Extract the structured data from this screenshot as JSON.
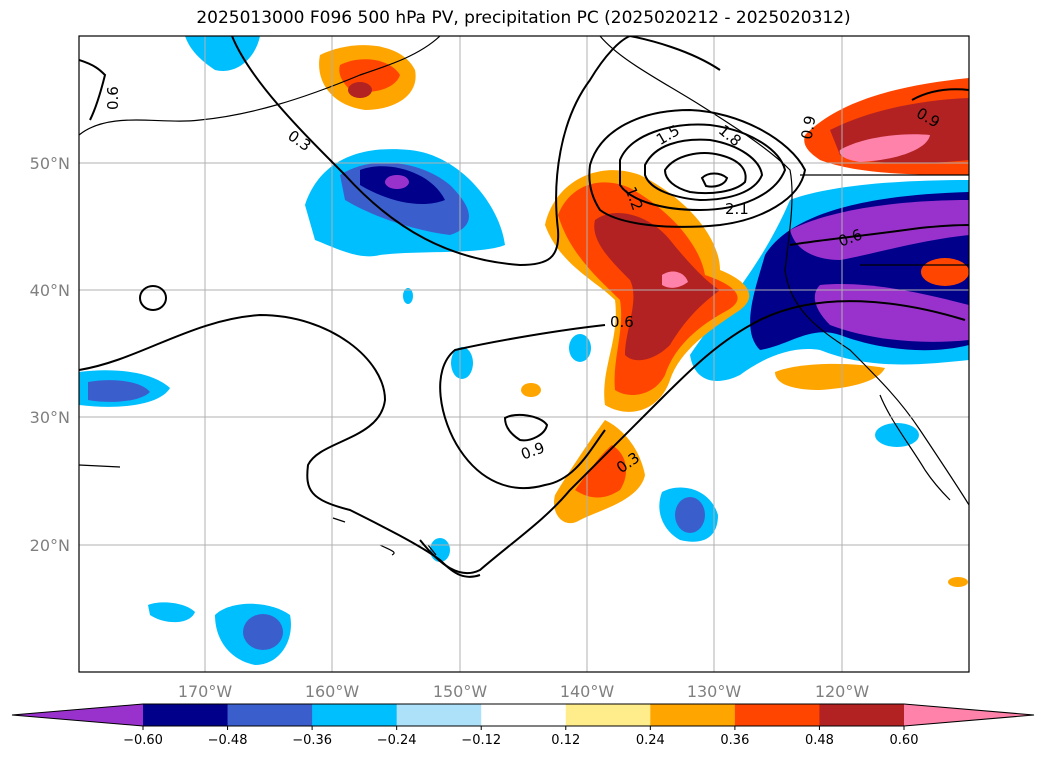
{
  "title": "2025013000 F096 500 hPa PV, precipitation PC (2025020212 - 2025020312)",
  "chart_data": {
    "type": "contour map",
    "title": "2025013000 F096 500 hPa PV, precipitation PC (2025020212 - 2025020312)",
    "lon_range": [
      -180,
      -110
    ],
    "lat_range": [
      10,
      60
    ],
    "grid": true,
    "x_ticks": [
      "170°W",
      "160°W",
      "150°W",
      "140°W",
      "130°W",
      "120°W"
    ],
    "y_ticks": [
      "20°N",
      "30°N",
      "40°N",
      "50°N"
    ],
    "pv_contour_labels": [
      "0.3",
      "0.6",
      "0.9",
      "1.2",
      "1.5",
      "1.8",
      "2.1"
    ],
    "colorbar": {
      "tick_labels": [
        "−0.60",
        "−0.48",
        "−0.36",
        "−0.24",
        "−0.12",
        "0.12",
        "0.24",
        "0.36",
        "0.48",
        "0.60"
      ],
      "colors": [
        "#9932CC",
        "#00008B",
        "#3A5FCD",
        "#00BFFF",
        "#ADE1FA",
        "#FFFFFF",
        "#FFEC8B",
        "#FFA500",
        "#FF4500",
        "#B22222",
        "#FF82AB"
      ],
      "extend": "both"
    }
  }
}
